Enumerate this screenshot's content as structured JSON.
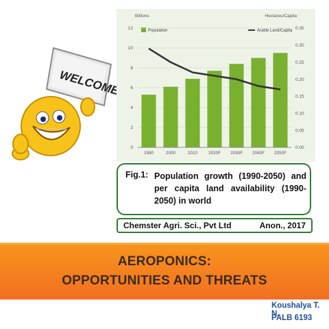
{
  "welcome_sign": "WELCOME!",
  "chart_data": {
    "type": "bar",
    "categories": [
      "1990",
      "2000",
      "2010",
      "2020F",
      "2030F",
      "2040F",
      "2050F"
    ],
    "series": [
      {
        "name": "Population",
        "type": "bar",
        "axis": "left",
        "color": "#7ab030",
        "values": [
          5.3,
          6.1,
          6.9,
          7.7,
          8.4,
          9.0,
          9.5
        ]
      },
      {
        "name": "Arable Land/Capita",
        "type": "line",
        "axis": "right",
        "color": "#333333",
        "values": [
          0.29,
          0.25,
          0.22,
          0.21,
          0.2,
          0.18,
          0.17
        ]
      }
    ],
    "left_axis_label": "Billions",
    "right_axis_label": "Hectares/Capita",
    "left_ticks": [
      "0",
      "2",
      "4",
      "6",
      "8",
      "10",
      "12"
    ],
    "right_ticks": [
      "0.00",
      "0.05",
      "0.10",
      "0.15",
      "0.20",
      "0.25",
      "0.30",
      "0.35"
    ],
    "ylim_left": [
      0,
      12
    ],
    "ylim_right": [
      0,
      0.35
    ],
    "grid": true,
    "legend": "top"
  },
  "caption": {
    "prefix": "Fig.1:",
    "text": "Population growth (1990-2050) and per capita land availability (1990-2050) in world"
  },
  "credit": {
    "company": "Chemster Agri. Sci., Pvt Ltd",
    "source": "Anon., 2017"
  },
  "title": {
    "line1": "AEROPONICS:",
    "line2": "OPPORTUNITIES AND THREATS"
  },
  "author": {
    "name": "Koushalya T. N.",
    "id": "PALB 6193"
  }
}
